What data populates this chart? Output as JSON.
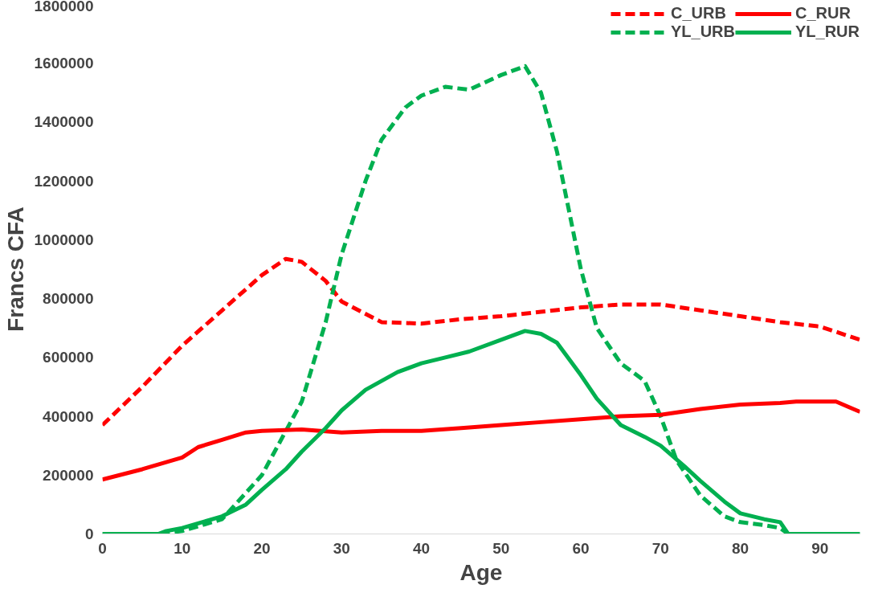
{
  "chart_data": {
    "type": "line",
    "xlabel": "Age",
    "ylabel": "Francs CFA",
    "xlim": [
      0,
      95
    ],
    "xticks": [
      0,
      10,
      20,
      30,
      40,
      50,
      60,
      70,
      80,
      90
    ],
    "ylim": [
      0,
      1800000
    ],
    "yticks": [
      0,
      200000,
      400000,
      600000,
      800000,
      1000000,
      1200000,
      1400000,
      1600000,
      1800000
    ],
    "grid": false,
    "legend": "top right",
    "marker": "none",
    "series": [
      {
        "name": "C_URB",
        "color": "#ff0000",
        "line_style": "dashed",
        "x": [
          0,
          5,
          10,
          15,
          20,
          23,
          25,
          28,
          30,
          35,
          40,
          45,
          50,
          55,
          60,
          65,
          70,
          75,
          80,
          85,
          90,
          95
        ],
        "values": [
          370000,
          500000,
          640000,
          760000,
          880000,
          935000,
          925000,
          860000,
          790000,
          720000,
          715000,
          730000,
          740000,
          755000,
          770000,
          780000,
          780000,
          760000,
          740000,
          720000,
          705000,
          660000
        ]
      },
      {
        "name": "YL_URB",
        "color": "#00b050",
        "line_style": "dashed",
        "x": [
          0,
          7,
          10,
          15,
          20,
          23,
          25,
          28,
          30,
          33,
          35,
          38,
          40,
          43,
          46,
          50,
          53,
          55,
          57,
          60,
          62,
          65,
          68,
          70,
          72,
          75,
          78,
          80,
          83,
          85,
          86,
          95
        ],
        "values": [
          0,
          0,
          10000,
          50000,
          200000,
          350000,
          450000,
          720000,
          950000,
          1200000,
          1340000,
          1450000,
          1490000,
          1520000,
          1510000,
          1560000,
          1590000,
          1500000,
          1300000,
          900000,
          700000,
          580000,
          520000,
          400000,
          250000,
          130000,
          60000,
          40000,
          30000,
          20000,
          0,
          0
        ]
      },
      {
        "name": "C_RUR",
        "color": "#ff0000",
        "line_style": "solid",
        "x": [
          0,
          5,
          10,
          12,
          15,
          18,
          20,
          25,
          30,
          35,
          40,
          45,
          50,
          55,
          60,
          65,
          70,
          75,
          80,
          85,
          87,
          92,
          95
        ],
        "values": [
          185000,
          220000,
          260000,
          295000,
          320000,
          345000,
          350000,
          355000,
          345000,
          350000,
          350000,
          360000,
          370000,
          380000,
          390000,
          400000,
          405000,
          425000,
          440000,
          445000,
          450000,
          450000,
          415000
        ]
      },
      {
        "name": "YL_RUR",
        "color": "#00b050",
        "line_style": "solid",
        "x": [
          0,
          7,
          8,
          10,
          15,
          18,
          20,
          23,
          25,
          28,
          30,
          33,
          35,
          37,
          40,
          43,
          46,
          50,
          53,
          55,
          57,
          60,
          62,
          65,
          68,
          70,
          73,
          75,
          78,
          80,
          83,
          85,
          86,
          95
        ],
        "values": [
          0,
          0,
          10000,
          20000,
          60000,
          100000,
          150000,
          220000,
          280000,
          360000,
          420000,
          490000,
          520000,
          550000,
          580000,
          600000,
          620000,
          660000,
          690000,
          680000,
          650000,
          540000,
          460000,
          370000,
          330000,
          300000,
          230000,
          180000,
          110000,
          70000,
          50000,
          40000,
          0,
          0
        ]
      }
    ]
  }
}
